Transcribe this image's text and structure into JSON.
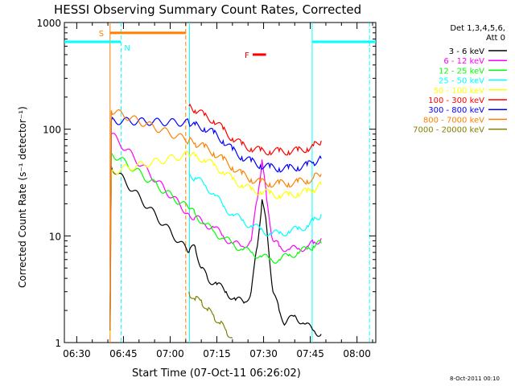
{
  "chart_data": {
    "type": "line",
    "title": "HESSI Observing Summary Count Rates, Corrected",
    "xlabel": "Start Time (07-Oct-11 06:26:02)",
    "ylabel": "Corrected Count Rate (s⁻¹ detector⁻¹)",
    "yscale": "log",
    "ylim": [
      1,
      1000
    ],
    "xlim_minutes": [
      26.03,
      126.03
    ],
    "xticks": [
      {
        "minutes": 30,
        "label": "06:30"
      },
      {
        "minutes": 45,
        "label": "06:45"
      },
      {
        "minutes": 60,
        "label": "07:00"
      },
      {
        "minutes": 75,
        "label": "07:15"
      },
      {
        "minutes": 90,
        "label": "07:30"
      },
      {
        "minutes": 105,
        "label": "07:45"
      },
      {
        "minutes": 120,
        "label": "08:00"
      }
    ],
    "yticks": [
      {
        "value": 1,
        "label": "1"
      },
      {
        "value": 10,
        "label": "10"
      },
      {
        "value": 100,
        "label": "100"
      },
      {
        "value": 1000,
        "label": "1000"
      }
    ],
    "legend": {
      "header": [
        "Det 1,3,4,5,6,",
        "Att 0"
      ],
      "placement": "right"
    },
    "series": [
      {
        "name": "3 - 6 keV",
        "color": "#000000",
        "values": [
          [
            40.7,
            1.2
          ],
          [
            41.1,
            45
          ],
          [
            66,
            7
          ],
          [
            68,
            8
          ],
          [
            70,
            5
          ],
          [
            72,
            4
          ],
          [
            75,
            3.5
          ],
          [
            78,
            3
          ],
          [
            81,
            2.5
          ],
          [
            84,
            2.4
          ],
          [
            86,
            3
          ],
          [
            88,
            8
          ],
          [
            89.5,
            22
          ],
          [
            91,
            12
          ],
          [
            93,
            3
          ],
          [
            95,
            2
          ],
          [
            97,
            1.5
          ],
          [
            100,
            1.8
          ],
          [
            103,
            1.5
          ],
          [
            106,
            1.3
          ],
          [
            108.5,
            1.2
          ]
        ]
      },
      {
        "name": "6 - 12 keV",
        "color": "#ff00ff",
        "values": [
          [
            40.7,
            1.5
          ],
          [
            41.1,
            90
          ],
          [
            66,
            16
          ],
          [
            68,
            15
          ],
          [
            71,
            13
          ],
          [
            74,
            12
          ],
          [
            77,
            10
          ],
          [
            80,
            8.5
          ],
          [
            83,
            8
          ],
          [
            86,
            9
          ],
          [
            88,
            22
          ],
          [
            89.5,
            52
          ],
          [
            91,
            22
          ],
          [
            93,
            9
          ],
          [
            95,
            8
          ],
          [
            98,
            7.5
          ],
          [
            101,
            7.5
          ],
          [
            104,
            8
          ],
          [
            106,
            8.5
          ],
          [
            108.5,
            9.5
          ]
        ]
      },
      {
        "name": "12 - 25 keV",
        "color": "#00ff00",
        "values": [
          [
            40.7,
            1.4
          ],
          [
            41.1,
            60
          ],
          [
            66,
            18
          ],
          [
            68,
            16
          ],
          [
            71,
            13
          ],
          [
            74,
            11
          ],
          [
            77,
            9.5
          ],
          [
            80,
            8.5
          ],
          [
            83,
            7.5
          ],
          [
            86,
            7
          ],
          [
            89,
            6.5
          ],
          [
            92,
            6
          ],
          [
            95,
            6
          ],
          [
            98,
            6.5
          ],
          [
            101,
            7
          ],
          [
            104,
            7.5
          ],
          [
            106,
            8
          ],
          [
            108.5,
            8.5
          ]
        ]
      },
      {
        "name": "25 - 50 keV",
        "color": "#00ffff",
        "values": [
          [
            66,
            38
          ],
          [
            68,
            35
          ],
          [
            71,
            30
          ],
          [
            74,
            25
          ],
          [
            77,
            19
          ],
          [
            80,
            16
          ],
          [
            83,
            14
          ],
          [
            86,
            12.5
          ],
          [
            89,
            11.5
          ],
          [
            92,
            10.5
          ],
          [
            95,
            10.5
          ],
          [
            98,
            11
          ],
          [
            101,
            11.5
          ],
          [
            104,
            12.5
          ],
          [
            106,
            14
          ],
          [
            108.5,
            16
          ]
        ]
      },
      {
        "name": "50 - 100 keV",
        "color": "#ffff00",
        "values": [
          [
            40.7,
            1.2
          ],
          [
            41.1,
            40
          ],
          [
            66,
            58
          ],
          [
            68,
            56
          ],
          [
            71,
            52
          ],
          [
            74,
            46
          ],
          [
            77,
            40
          ],
          [
            80,
            34
          ],
          [
            83,
            30
          ],
          [
            86,
            27
          ],
          [
            89,
            26
          ],
          [
            92,
            25
          ],
          [
            95,
            24
          ],
          [
            98,
            24
          ],
          [
            101,
            25
          ],
          [
            104,
            26
          ],
          [
            106,
            27
          ],
          [
            108.5,
            30
          ]
        ]
      },
      {
        "name": "100 - 300 keV",
        "color": "#ff0000",
        "values": [
          [
            66,
            165
          ],
          [
            68,
            150
          ],
          [
            71,
            135
          ],
          [
            74,
            120
          ],
          [
            77,
            100
          ],
          [
            80,
            82
          ],
          [
            83,
            72
          ],
          [
            86,
            66
          ],
          [
            89,
            63
          ],
          [
            92,
            62
          ],
          [
            95,
            62
          ],
          [
            98,
            62
          ],
          [
            101,
            63
          ],
          [
            104,
            66
          ],
          [
            106,
            70
          ],
          [
            108.5,
            78
          ]
        ]
      },
      {
        "name": "300 - 800 keV",
        "color": "#0000ff",
        "values": [
          [
            40.7,
            1.3
          ],
          [
            41.1,
            120
          ],
          [
            66,
            115
          ],
          [
            68,
            110
          ],
          [
            71,
            102
          ],
          [
            74,
            92
          ],
          [
            77,
            78
          ],
          [
            80,
            64
          ],
          [
            83,
            55
          ],
          [
            86,
            50
          ],
          [
            89,
            46
          ],
          [
            92,
            44
          ],
          [
            95,
            43
          ],
          [
            98,
            43
          ],
          [
            101,
            44
          ],
          [
            104,
            46
          ],
          [
            106,
            49
          ],
          [
            108.5,
            53
          ]
        ]
      },
      {
        "name": "800 - 7000 keV",
        "color": "#ff8000",
        "values": [
          [
            40.7,
            1.3
          ],
          [
            41.1,
            150
          ],
          [
            66,
            78
          ],
          [
            68,
            74
          ],
          [
            71,
            68
          ],
          [
            74,
            60
          ],
          [
            77,
            52
          ],
          [
            80,
            44
          ],
          [
            83,
            38
          ],
          [
            86,
            34
          ],
          [
            89,
            32
          ],
          [
            92,
            31
          ],
          [
            95,
            31
          ],
          [
            98,
            31
          ],
          [
            101,
            32
          ],
          [
            104,
            33
          ],
          [
            106,
            35
          ],
          [
            108.5,
            38
          ]
        ]
      },
      {
        "name": "7000 - 20000 keV",
        "color": "#808000",
        "values": [
          [
            66,
            3
          ],
          [
            68,
            2.5
          ],
          [
            70,
            2.5
          ],
          [
            72,
            2
          ],
          [
            74,
            1.8
          ],
          [
            76,
            1.5
          ],
          [
            78,
            1.3
          ],
          [
            80,
            1.1
          ]
        ]
      }
    ],
    "annotations": [
      {
        "label": "S",
        "color": "#ff8000",
        "x_start": 40.7,
        "x_end": 65.0,
        "y": 800
      },
      {
        "label": "N",
        "color": "#00ffff",
        "x_start": 26.03,
        "x_end": 44.2,
        "y": 660
      },
      {
        "label": "N",
        "color": "#00ffff",
        "x_start": 105.6,
        "x_end": 126.03,
        "y": 660
      },
      {
        "label": "F",
        "color": "#ff0000",
        "x_start": 86.5,
        "x_end": 90.8,
        "y": 500
      }
    ],
    "vlines": [
      {
        "minutes": 40.7,
        "color": "#ff8000",
        "style": "solid"
      },
      {
        "minutes": 44.2,
        "color": "#00ffff",
        "style": "dashed"
      },
      {
        "minutes": 65.0,
        "color": "#ff8000",
        "style": "dashed"
      },
      {
        "minutes": 66.2,
        "color": "#00ffff",
        "style": "solid"
      },
      {
        "minutes": 105.6,
        "color": "#00ffff",
        "style": "solid"
      },
      {
        "minutes": 124.0,
        "color": "#00ffff",
        "style": "dashed"
      }
    ]
  },
  "timestamp": "8-Oct-2011 00:10"
}
